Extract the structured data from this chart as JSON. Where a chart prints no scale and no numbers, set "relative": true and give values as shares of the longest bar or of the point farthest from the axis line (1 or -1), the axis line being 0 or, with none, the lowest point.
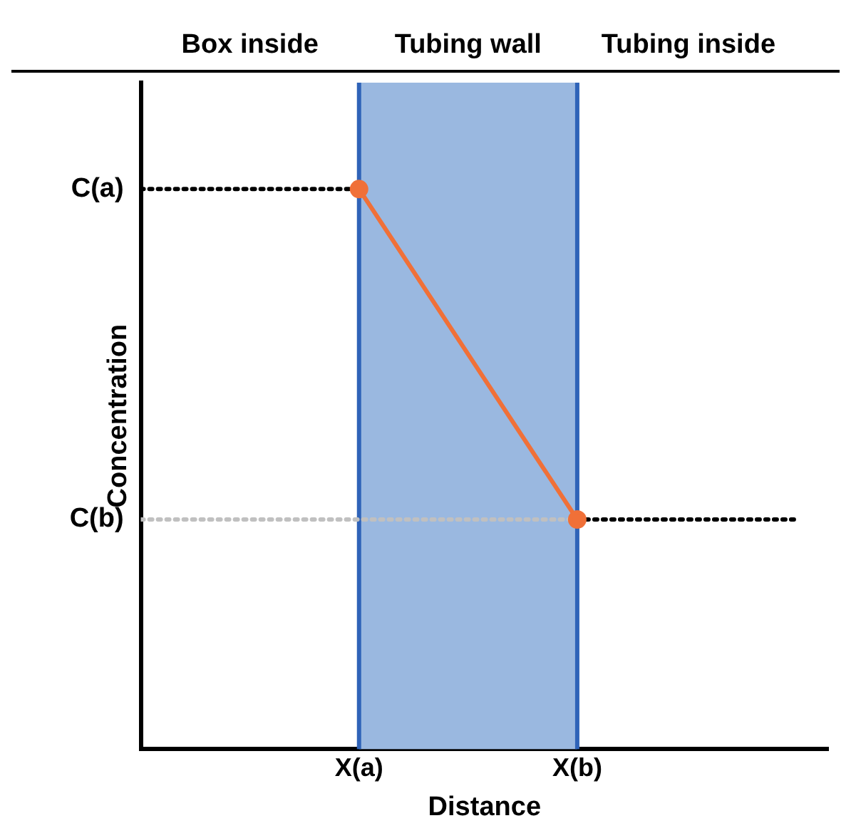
{
  "chart_data": {
    "type": "line",
    "relative": true,
    "xlabel": "Distance",
    "ylabel": "Concentration",
    "categories": [
      null,
      "X(a)",
      "X(b)",
      null
    ],
    "series": [
      {
        "type": "line",
        "values": [
          null,
          1,
          0.41,
          null
        ],
        "color": "#f07038",
        "marker": "circle",
        "line_style": "solid"
      },
      {
        "type": "line",
        "name": "C(a)",
        "values": [
          1,
          1,
          null,
          null
        ],
        "color": "#000000",
        "marker": "none",
        "line_style": "dotted"
      },
      {
        "type": "line",
        "name": "C(b)",
        "values": [
          0.41,
          0.41,
          0.41,
          null
        ],
        "color": "#c0c0c0",
        "marker": "none",
        "line_style": "dotted"
      },
      {
        "type": "line",
        "values": [
          null,
          null,
          0.41,
          0.41
        ],
        "color": "#000000",
        "marker": "none",
        "line_style": "dotted"
      }
    ],
    "bands": [
      {
        "axis": "x",
        "from": "X(a)",
        "to": "X(b)",
        "label": "Tubing wall",
        "color": "#9ab8e0"
      }
    ],
    "annotations": [
      "Box inside",
      "Tubing inside"
    ],
    "legend": false
  }
}
